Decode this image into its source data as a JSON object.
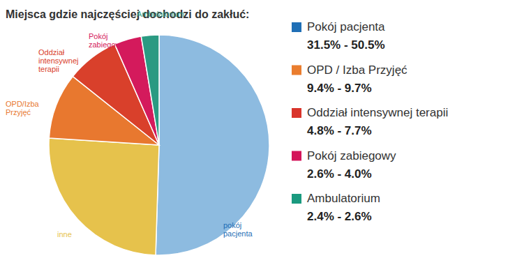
{
  "chart_data": {
    "type": "pie",
    "title": "Miejsca gdzie najczęściej dochodzi do zakłuć:",
    "categories": [
      "pokój\npacjenta",
      "inne",
      "OPD/Izba\nPrzyjęć",
      "Oddział\nintensywnej\nterapii",
      "Pokój\nzabiegowy",
      "Ambulatorium"
    ],
    "values": [
      50.5,
      25.5,
      9.7,
      7.7,
      4.0,
      2.6
    ],
    "colors": [
      "#8dbbe0",
      "#e6c24c",
      "#e8782f",
      "#d9402b",
      "#d41a5c",
      "#2a9a82"
    ],
    "legend_entries": [
      {
        "name": "Pokój pacjenta",
        "color": "#1f6fb6",
        "range": [
          31.5,
          50.5
        ],
        "range_label": "31.5% - 50.5%"
      },
      {
        "name": "OPD / Izba Przyjęć",
        "color": "#ea7d2e",
        "range": [
          9.4,
          9.7
        ],
        "range_label": "9.4% - 9.7%"
      },
      {
        "name": "Oddział intensywnej terapii",
        "color": "#d9342b",
        "range": [
          4.8,
          7.7
        ],
        "range_label": "4.8% - 7.7%"
      },
      {
        "name": "Pokój zabiegowy",
        "color": "#d4145a",
        "range": [
          2.6,
          4.0
        ],
        "range_label": "2.6% - 4.0%"
      },
      {
        "name": "Ambulatorium",
        "color": "#1a9a7f",
        "range": [
          2.4,
          2.6
        ],
        "range_label": "2.4% - 2.6%"
      }
    ]
  }
}
